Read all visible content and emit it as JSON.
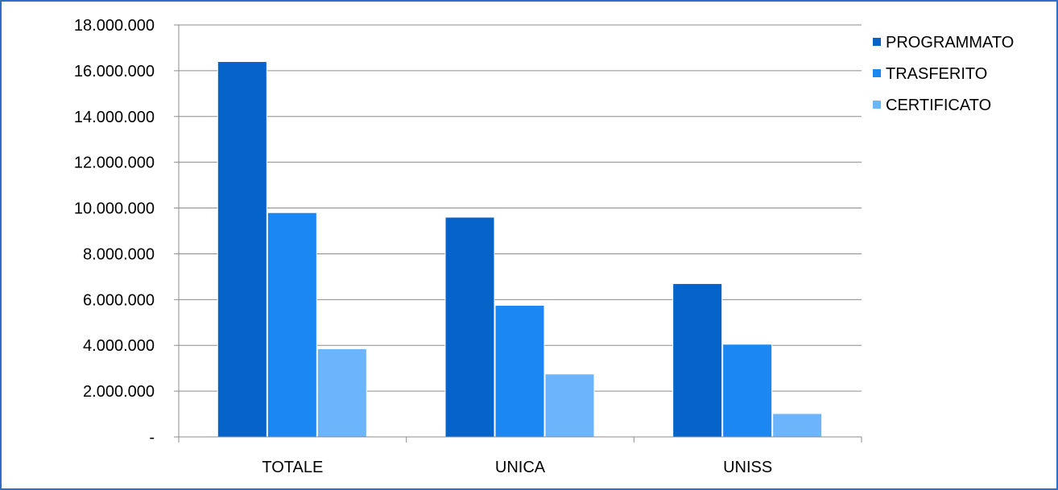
{
  "chart_data": {
    "type": "bar",
    "title": "",
    "xlabel": "",
    "ylabel": "",
    "categories": [
      "TOTALE",
      "UNICA",
      "UNISS"
    ],
    "series": [
      {
        "name": "PROGRAMMATO",
        "color": "#0563c9",
        "values": [
          16400000,
          9600000,
          6700000
        ]
      },
      {
        "name": "TRASFERITO",
        "color": "#1b87f2",
        "values": [
          9800000,
          5750000,
          4050000
        ]
      },
      {
        "name": "CERTIFICATO",
        "color": "#6cb4fb",
        "values": [
          3850000,
          2750000,
          1020000
        ]
      }
    ],
    "ylim": [
      0,
      18000000
    ],
    "yticks": [
      0,
      2000000,
      4000000,
      6000000,
      8000000,
      10000000,
      12000000,
      14000000,
      16000000,
      18000000
    ],
    "ytick_labels": [
      "-",
      "2.000.000",
      "4.000.000",
      "6.000.000",
      "8.000.000",
      "10.000.000",
      "12.000.000",
      "14.000.000",
      "16.000.000",
      "18.000.000"
    ],
    "grid": true,
    "legend_position": "top-right"
  }
}
